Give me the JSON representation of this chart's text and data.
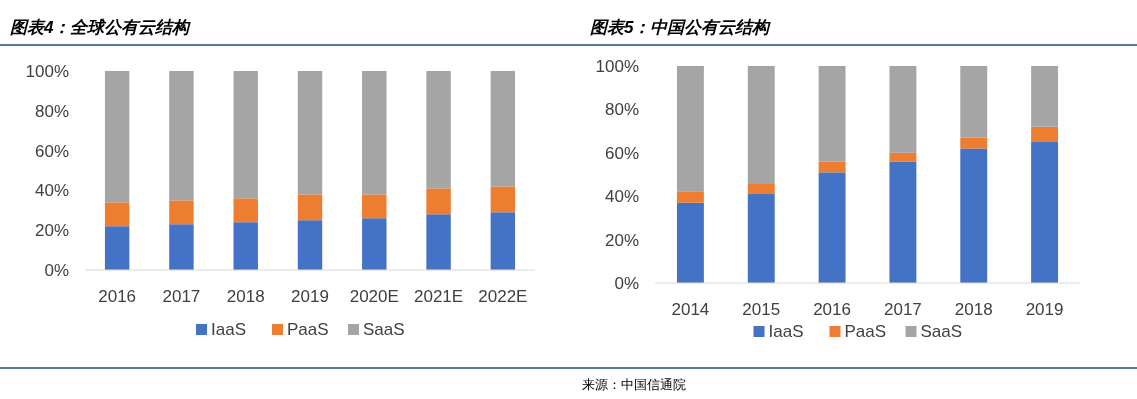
{
  "chart_data": [
    {
      "type": "bar",
      "stacked": true,
      "title": "图表4：全球公有云结构",
      "categories": [
        "2016",
        "2017",
        "2018",
        "2019",
        "2020E",
        "2021E",
        "2022E"
      ],
      "series": [
        {
          "name": "IaaS",
          "color": "#4472c4",
          "values": [
            22,
            23,
            24,
            25,
            26,
            28,
            29
          ]
        },
        {
          "name": "PaaS",
          "color": "#ed7d31",
          "values": [
            12,
            12,
            12,
            13,
            12,
            13,
            13
          ]
        },
        {
          "name": "SaaS",
          "color": "#a5a5a5",
          "values": [
            66,
            65,
            64,
            62,
            62,
            59,
            58
          ]
        }
      ],
      "ylim": [
        0,
        100
      ],
      "yticks": [
        {
          "value": 0,
          "label": "0%"
        },
        {
          "value": 20,
          "label": "20%"
        },
        {
          "value": 40,
          "label": "40%"
        },
        {
          "value": 60,
          "label": "60%"
        },
        {
          "value": 80,
          "label": "80%"
        },
        {
          "value": 100,
          "label": "100%"
        }
      ],
      "grid": false,
      "legend": "bottom"
    },
    {
      "type": "bar",
      "stacked": true,
      "title": "图表5：中国公有云结构",
      "categories": [
        "2014",
        "2015",
        "2016",
        "2017",
        "2018",
        "2019"
      ],
      "series": [
        {
          "name": "IaaS",
          "color": "#4472c4",
          "values": [
            37,
            41,
            51,
            56,
            62,
            65
          ]
        },
        {
          "name": "PaaS",
          "color": "#ed7d31",
          "values": [
            5,
            5,
            5,
            4,
            5,
            7
          ]
        },
        {
          "name": "SaaS",
          "color": "#a5a5a5",
          "values": [
            58,
            54,
            44,
            40,
            33,
            28
          ]
        }
      ],
      "ylim": [
        0,
        100
      ],
      "yticks": [
        {
          "value": 0,
          "label": "0%"
        },
        {
          "value": 20,
          "label": "20%"
        },
        {
          "value": 40,
          "label": "40%"
        },
        {
          "value": 60,
          "label": "60%"
        },
        {
          "value": 80,
          "label": "80%"
        },
        {
          "value": 100,
          "label": "100%"
        }
      ],
      "grid": false,
      "legend": "bottom",
      "annotations": [
        "来源：中国信通院"
      ]
    }
  ]
}
